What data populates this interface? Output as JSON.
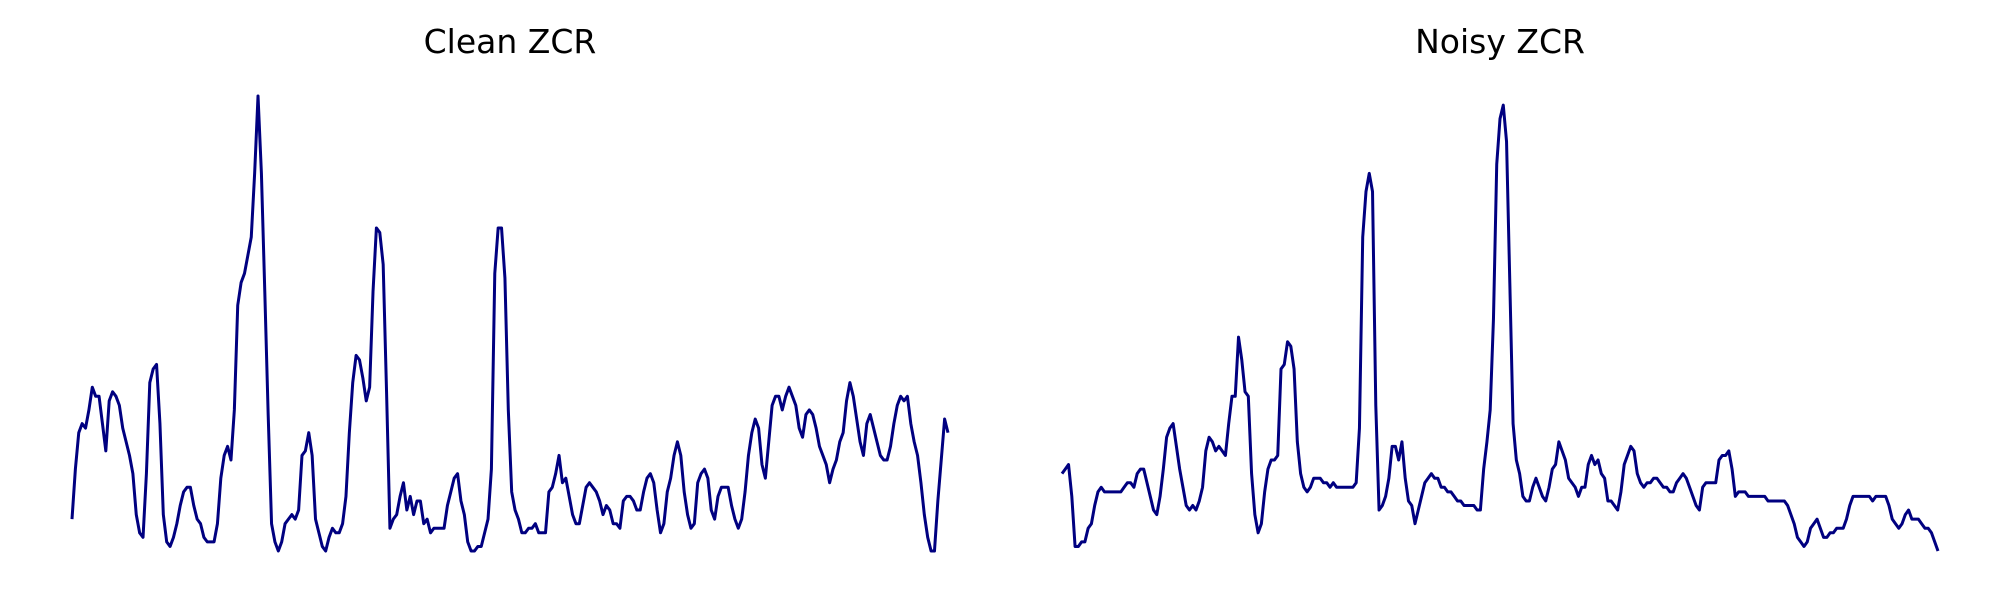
{
  "colors": {
    "line": "#000080",
    "background": "#ffffff"
  },
  "chart_data": [
    {
      "type": "line",
      "title": "Clean ZCR",
      "axes_visible": false,
      "grid": false,
      "ylim": [
        0,
        1
      ],
      "series": [
        {
          "values": [
            0.07,
            0.18,
            0.26,
            0.28,
            0.27,
            0.31,
            0.36,
            0.34,
            0.34,
            0.28,
            0.22,
            0.33,
            0.35,
            0.34,
            0.32,
            0.27,
            0.24,
            0.21,
            0.17,
            0.08,
            0.04,
            0.03,
            0.17,
            0.37,
            0.4,
            0.41,
            0.28,
            0.08,
            0.02,
            0.01,
            0.03,
            0.06,
            0.1,
            0.13,
            0.14,
            0.14,
            0.1,
            0.07,
            0.06,
            0.03,
            0.02,
            0.02,
            0.02,
            0.06,
            0.16,
            0.21,
            0.23,
            0.2,
            0.31,
            0.54,
            0.59,
            0.61,
            0.65,
            0.69,
            0.83,
            1.0,
            0.83,
            0.57,
            0.3,
            0.06,
            0.02,
            0.0,
            0.02,
            0.06,
            0.07,
            0.08,
            0.07,
            0.09,
            0.21,
            0.22,
            0.26,
            0.21,
            0.07,
            0.04,
            0.01,
            0.0,
            0.03,
            0.05,
            0.04,
            0.04,
            0.06,
            0.12,
            0.26,
            0.37,
            0.43,
            0.42,
            0.38,
            0.33,
            0.36,
            0.57,
            0.71,
            0.7,
            0.63,
            0.35,
            0.05,
            0.07,
            0.08,
            0.12,
            0.15,
            0.09,
            0.12,
            0.08,
            0.11,
            0.11,
            0.06,
            0.07,
            0.04,
            0.05,
            0.05,
            0.05,
            0.05,
            0.1,
            0.13,
            0.16,
            0.17,
            0.11,
            0.08,
            0.02,
            0.0,
            0.0,
            0.01,
            0.01,
            0.04,
            0.07,
            0.18,
            0.61,
            0.71,
            0.71,
            0.6,
            0.31,
            0.13,
            0.09,
            0.07,
            0.04,
            0.04,
            0.05,
            0.05,
            0.06,
            0.04,
            0.04,
            0.04,
            0.13,
            0.14,
            0.17,
            0.21,
            0.15,
            0.16,
            0.12,
            0.08,
            0.06,
            0.06,
            0.1,
            0.14,
            0.15,
            0.14,
            0.13,
            0.11,
            0.08,
            0.1,
            0.09,
            0.06,
            0.06,
            0.05,
            0.11,
            0.12,
            0.12,
            0.11,
            0.09,
            0.09,
            0.13,
            0.16,
            0.17,
            0.15,
            0.09,
            0.04,
            0.06,
            0.13,
            0.16,
            0.21,
            0.24,
            0.21,
            0.13,
            0.08,
            0.05,
            0.06,
            0.15,
            0.17,
            0.18,
            0.16,
            0.09,
            0.07,
            0.12,
            0.14,
            0.14,
            0.14,
            0.1,
            0.07,
            0.05,
            0.07,
            0.13,
            0.21,
            0.26,
            0.29,
            0.27,
            0.19,
            0.16,
            0.24,
            0.32,
            0.34,
            0.34,
            0.31,
            0.34,
            0.36,
            0.34,
            0.32,
            0.27,
            0.25,
            0.3,
            0.31,
            0.3,
            0.27,
            0.23,
            0.21,
            0.19,
            0.15,
            0.18,
            0.2,
            0.24,
            0.26,
            0.33,
            0.37,
            0.34,
            0.29,
            0.24,
            0.21,
            0.28,
            0.3,
            0.27,
            0.24,
            0.21,
            0.2,
            0.2,
            0.23,
            0.28,
            0.32,
            0.34,
            0.33,
            0.34,
            0.28,
            0.24,
            0.21,
            0.15,
            0.08,
            0.03,
            0.0,
            0.0,
            0.11,
            0.2,
            0.29,
            0.26
          ]
        }
      ]
    },
    {
      "type": "line",
      "title": "Noisy ZCR",
      "axes_visible": false,
      "grid": false,
      "ylim": [
        0,
        1
      ],
      "series": [
        {
          "values": [
            0.17,
            0.18,
            0.19,
            0.12,
            0.01,
            0.01,
            0.02,
            0.02,
            0.05,
            0.06,
            0.1,
            0.13,
            0.14,
            0.13,
            0.13,
            0.13,
            0.13,
            0.13,
            0.13,
            0.14,
            0.15,
            0.15,
            0.14,
            0.17,
            0.18,
            0.18,
            0.15,
            0.12,
            0.09,
            0.08,
            0.12,
            0.18,
            0.25,
            0.27,
            0.28,
            0.23,
            0.18,
            0.14,
            0.1,
            0.09,
            0.1,
            0.09,
            0.11,
            0.14,
            0.22,
            0.25,
            0.24,
            0.22,
            0.23,
            0.22,
            0.21,
            0.28,
            0.34,
            0.34,
            0.47,
            0.42,
            0.35,
            0.34,
            0.17,
            0.08,
            0.04,
            0.06,
            0.13,
            0.18,
            0.2,
            0.2,
            0.21,
            0.4,
            0.41,
            0.46,
            0.45,
            0.4,
            0.24,
            0.17,
            0.14,
            0.13,
            0.14,
            0.16,
            0.16,
            0.16,
            0.15,
            0.15,
            0.14,
            0.15,
            0.14,
            0.14,
            0.14,
            0.14,
            0.14,
            0.14,
            0.15,
            0.27,
            0.69,
            0.79,
            0.83,
            0.79,
            0.32,
            0.09,
            0.1,
            0.12,
            0.16,
            0.23,
            0.23,
            0.2,
            0.24,
            0.16,
            0.11,
            0.1,
            0.06,
            0.09,
            0.12,
            0.15,
            0.16,
            0.17,
            0.16,
            0.16,
            0.14,
            0.14,
            0.13,
            0.13,
            0.12,
            0.11,
            0.11,
            0.1,
            0.1,
            0.1,
            0.1,
            0.09,
            0.09,
            0.18,
            0.24,
            0.31,
            0.51,
            0.85,
            0.95,
            0.98,
            0.9,
            0.59,
            0.28,
            0.2,
            0.17,
            0.12,
            0.11,
            0.11,
            0.14,
            0.16,
            0.14,
            0.12,
            0.11,
            0.14,
            0.18,
            0.19,
            0.24,
            0.22,
            0.2,
            0.16,
            0.15,
            0.14,
            0.12,
            0.14,
            0.14,
            0.19,
            0.21,
            0.19,
            0.2,
            0.17,
            0.16,
            0.11,
            0.11,
            0.1,
            0.09,
            0.13,
            0.19,
            0.21,
            0.23,
            0.22,
            0.17,
            0.15,
            0.14,
            0.15,
            0.15,
            0.16,
            0.16,
            0.15,
            0.14,
            0.14,
            0.13,
            0.13,
            0.15,
            0.16,
            0.17,
            0.16,
            0.14,
            0.12,
            0.1,
            0.09,
            0.14,
            0.15,
            0.15,
            0.15,
            0.15,
            0.2,
            0.21,
            0.21,
            0.22,
            0.18,
            0.12,
            0.13,
            0.13,
            0.13,
            0.12,
            0.12,
            0.12,
            0.12,
            0.12,
            0.12,
            0.11,
            0.11,
            0.11,
            0.11,
            0.11,
            0.11,
            0.1,
            0.08,
            0.06,
            0.03,
            0.02,
            0.01,
            0.02,
            0.05,
            0.06,
            0.07,
            0.05,
            0.03,
            0.03,
            0.04,
            0.04,
            0.05,
            0.05,
            0.05,
            0.07,
            0.1,
            0.12,
            0.12,
            0.12,
            0.12,
            0.12,
            0.12,
            0.11,
            0.12,
            0.12,
            0.12,
            0.12,
            0.1,
            0.07,
            0.06,
            0.05,
            0.06,
            0.08,
            0.09,
            0.07,
            0.07,
            0.07,
            0.06,
            0.05,
            0.05,
            0.04,
            0.02,
            0.0
          ]
        }
      ]
    }
  ]
}
